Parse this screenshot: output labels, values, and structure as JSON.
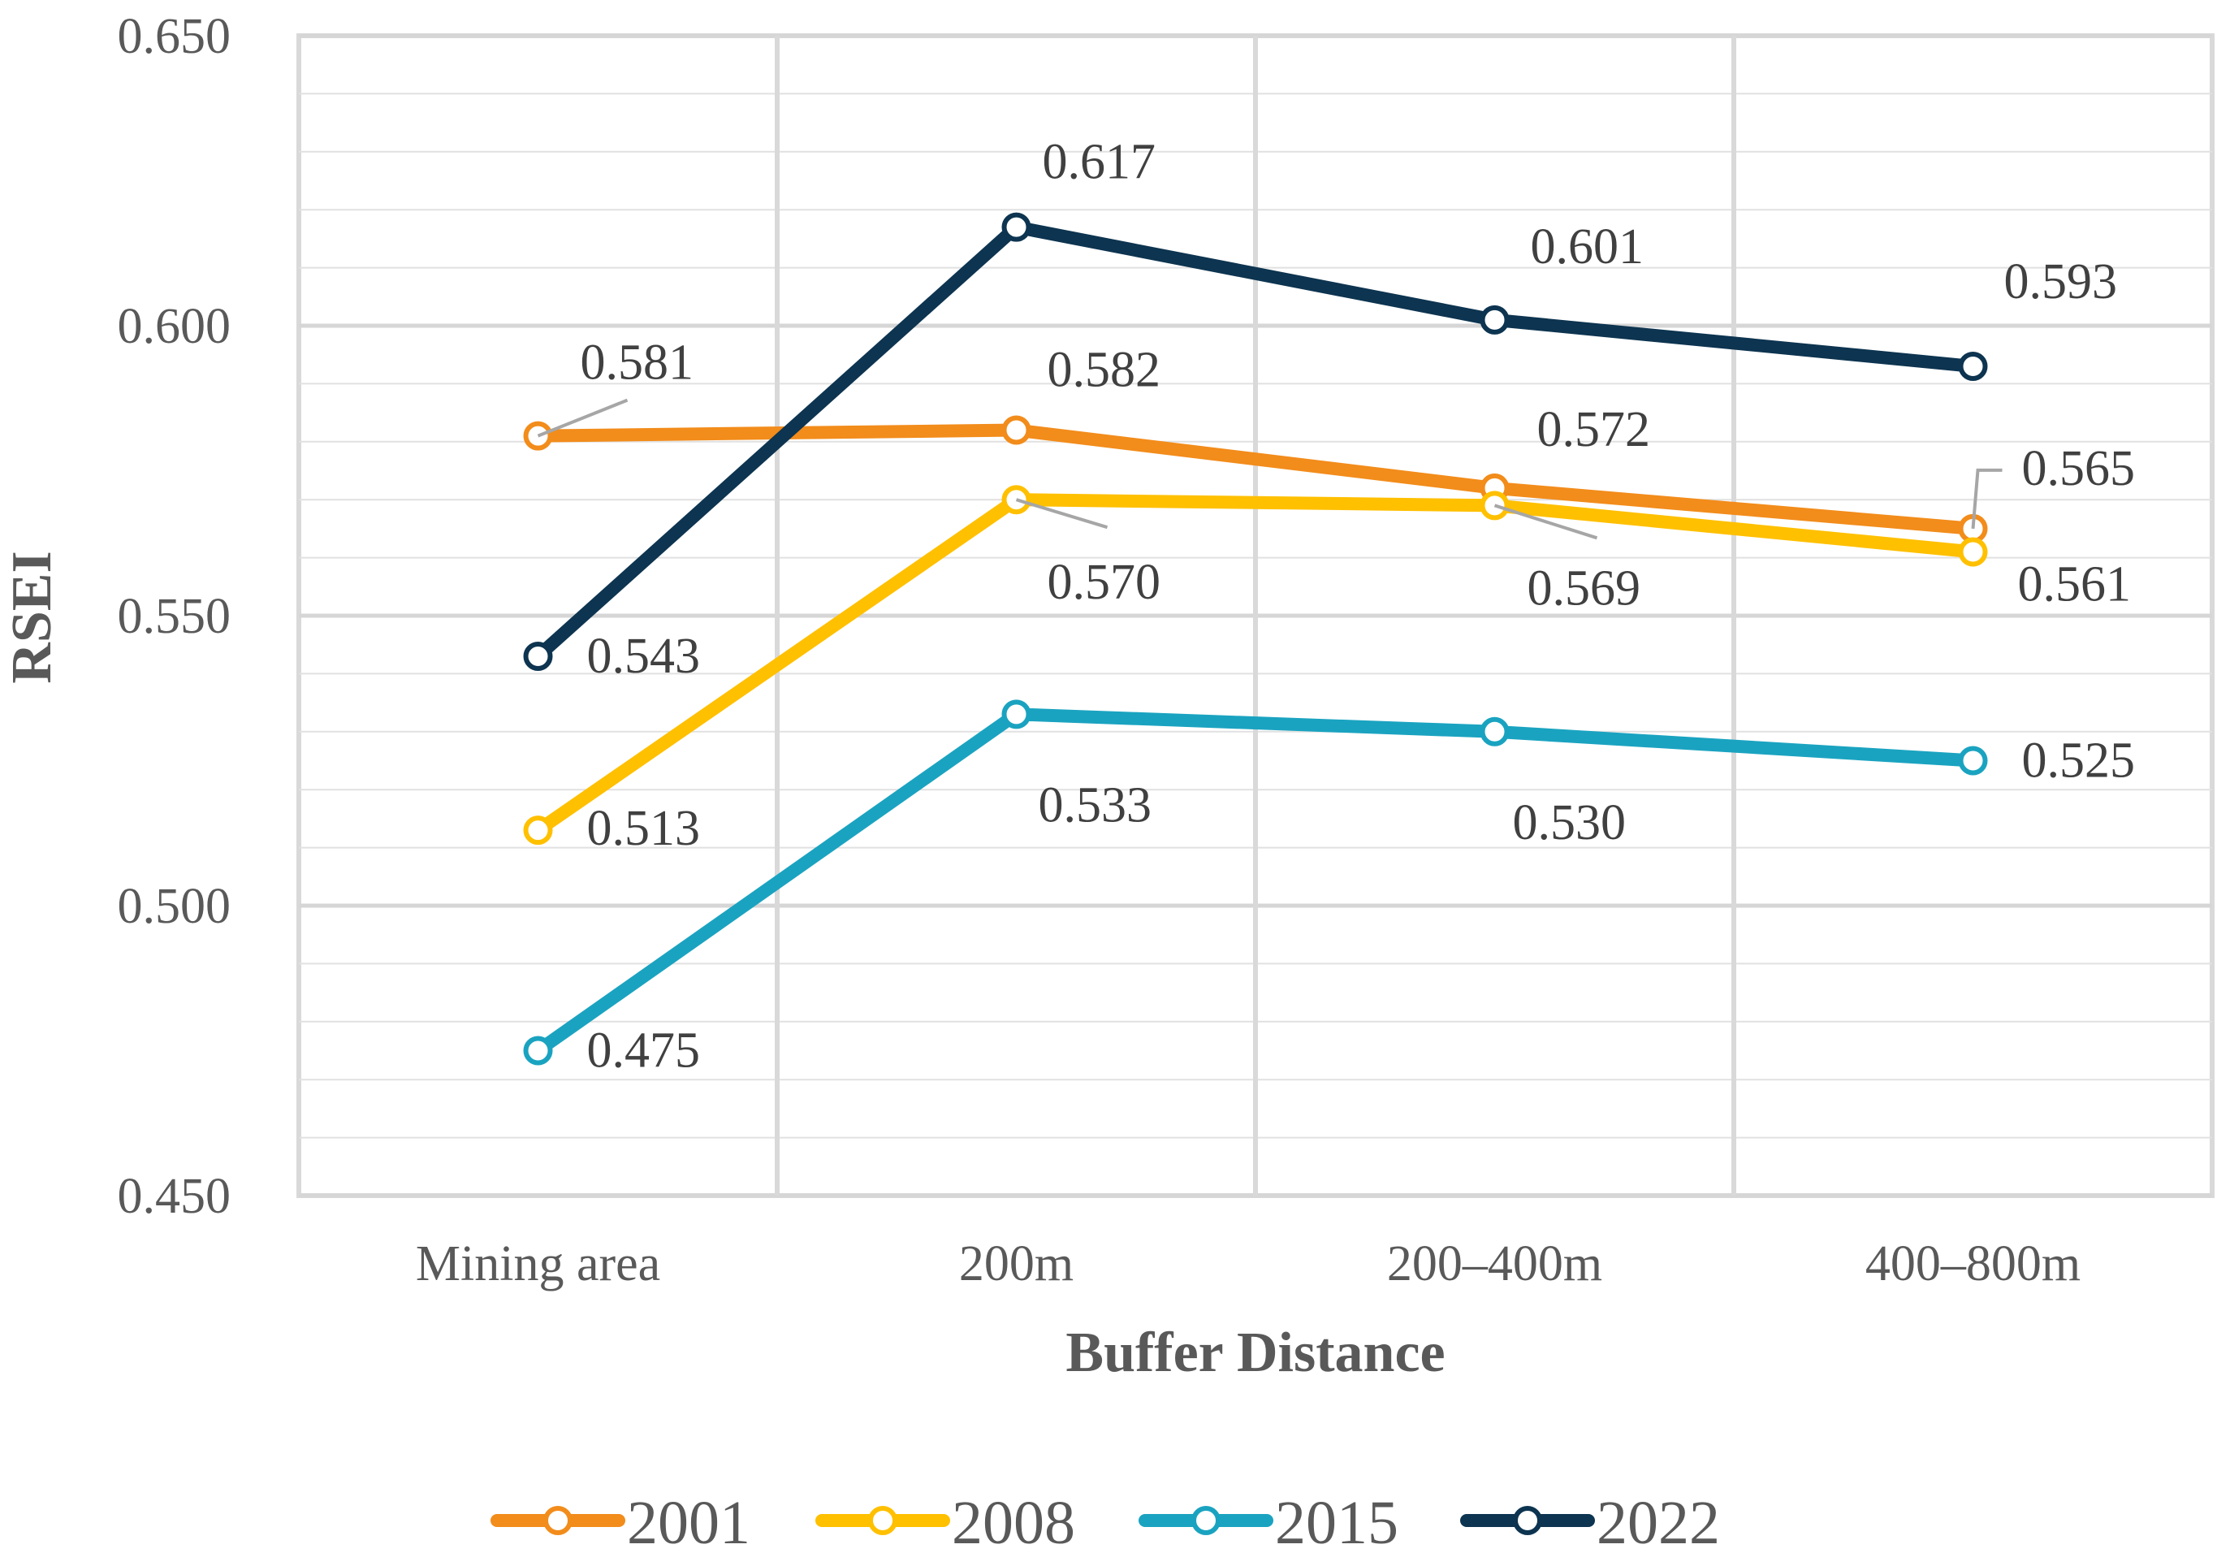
{
  "chart_data": {
    "type": "line",
    "title": "",
    "xlabel": "Buffer Distance",
    "ylabel": "RSEI",
    "categories": [
      "Mining area",
      "200m",
      "200–400m",
      "400–800m"
    ],
    "ylim": [
      0.45,
      0.65
    ],
    "ytick_labels": [
      "0.450",
      "0.500",
      "0.550",
      "0.600",
      "0.650"
    ],
    "grid": true,
    "legend_position": "bottom",
    "series": [
      {
        "name": "2001",
        "color": "#F28C1B",
        "values": [
          0.581,
          0.582,
          0.572,
          0.565
        ],
        "labels": [
          "0.581",
          "0.582",
          "0.572",
          "0.565"
        ]
      },
      {
        "name": "2008",
        "color": "#FFC000",
        "values": [
          0.513,
          0.57,
          0.569,
          0.561
        ],
        "labels": [
          "0.513",
          "0.570",
          "0.569",
          "0.561"
        ]
      },
      {
        "name": "2015",
        "color": "#1AA3C0",
        "values": [
          0.475,
          0.533,
          0.53,
          0.525
        ],
        "labels": [
          "0.475",
          "0.533",
          "0.530",
          "0.525"
        ]
      },
      {
        "name": "2022",
        "color": "#0D3450",
        "values": [
          0.543,
          0.617,
          0.601,
          0.593
        ],
        "labels": [
          "0.543",
          "0.617",
          "0.601",
          "0.593"
        ]
      }
    ]
  }
}
